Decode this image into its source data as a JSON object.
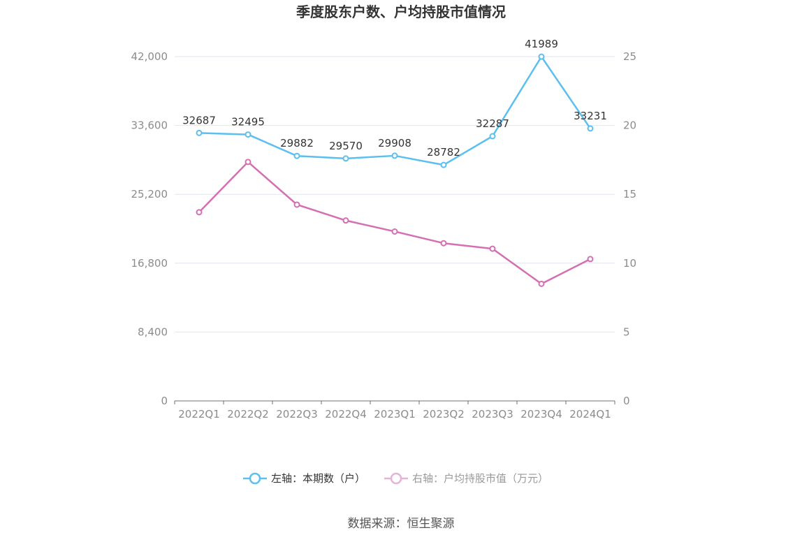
{
  "chart_data": {
    "type": "line",
    "title": "季度股东户数、户均持股市值情况",
    "categories": [
      "2022Q1",
      "2022Q2",
      "2022Q3",
      "2022Q4",
      "2023Q1",
      "2023Q2",
      "2023Q3",
      "2023Q4",
      "2024Q1"
    ],
    "series": [
      {
        "name": "左轴：本期数（户）",
        "axis": "left",
        "color": "#5bbfef",
        "values": [
          32687,
          32495,
          29882,
          29570,
          29908,
          28782,
          32287,
          41989,
          33231
        ],
        "data_labels": [
          "32687",
          "32495",
          "29882",
          "29570",
          "29908",
          "28782",
          "32287",
          "41989",
          "33231"
        ]
      },
      {
        "name": "右轴：户均持股市值（万元）",
        "axis": "right",
        "color": "#d46fb3",
        "values": [
          13.7,
          17.35,
          14.25,
          13.1,
          12.3,
          11.45,
          11.05,
          8.5,
          10.3
        ]
      }
    ],
    "left_axis": {
      "min": 0,
      "max": 42000,
      "ticks": [
        "0",
        "8,400",
        "16,800",
        "25,200",
        "33,600",
        "42,000"
      ]
    },
    "right_axis": {
      "min": 0,
      "max": 25,
      "ticks": [
        "0",
        "5",
        "10",
        "15",
        "20",
        "25"
      ]
    },
    "grid": true,
    "legend_position": "bottom",
    "legend_active_color": "#333333",
    "legend_muted_color": "#999999",
    "legend_muted_series_color": "#e4b3d5"
  },
  "source_text": "数据来源：恒生聚源"
}
